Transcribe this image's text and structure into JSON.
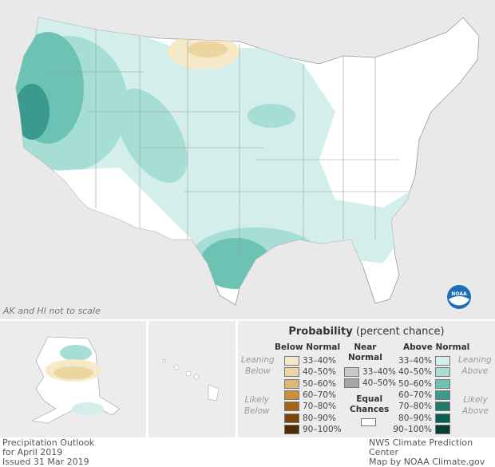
{
  "map": {
    "title": "Precipitation Outlook",
    "note": "AK and HI not to scale",
    "logo": "NOAA"
  },
  "legend": {
    "title": "Probability",
    "subtitle": "(percent chance)",
    "below_header": "Below Normal",
    "near_header": [
      "Near",
      "Normal"
    ],
    "above_header": "Above Normal",
    "leaning_below": [
      "Leaning",
      "Below"
    ],
    "likely_below": [
      "Likely",
      "Below"
    ],
    "leaning_above": [
      "Leaning",
      "Above"
    ],
    "likely_above": [
      "Likely",
      "Above"
    ],
    "equal_chances": [
      "Equal",
      "Chances"
    ],
    "below": [
      {
        "label": "33–40%",
        "color": "#f6e9c7"
      },
      {
        "label": "40–50%",
        "color": "#ecd6a0"
      },
      {
        "label": "50–60%",
        "color": "#dcb872"
      },
      {
        "label": "60–70%",
        "color": "#c98f3b"
      },
      {
        "label": "70–80%",
        "color": "#a5621a"
      },
      {
        "label": "80–90%",
        "color": "#7b4409"
      },
      {
        "label": "90–100%",
        "color": "#4e2b05"
      }
    ],
    "near": [
      {
        "label": "33–40%",
        "color": "#c8c8c8"
      },
      {
        "label": "40–50%",
        "color": "#a5a5a5"
      }
    ],
    "above": [
      {
        "label": "33–40%",
        "color": "#d4efeb"
      },
      {
        "label": "40–50%",
        "color": "#a6ded5"
      },
      {
        "label": "50–60%",
        "color": "#6cc3b4"
      },
      {
        "label": "60–70%",
        "color": "#3a9a8d"
      },
      {
        "label": "70–80%",
        "color": "#1d7a6d"
      },
      {
        "label": "80–90%",
        "color": "#0b5f52"
      },
      {
        "label": "90–100%",
        "color": "#033f35"
      }
    ]
  },
  "footer": {
    "left": [
      "Precipitation Outlook",
      "for April 2019",
      "Issued 31 Mar 2019"
    ],
    "right": [
      "NWS Climate Prediction Center",
      "Map by NOAA Climate.gov"
    ]
  }
}
